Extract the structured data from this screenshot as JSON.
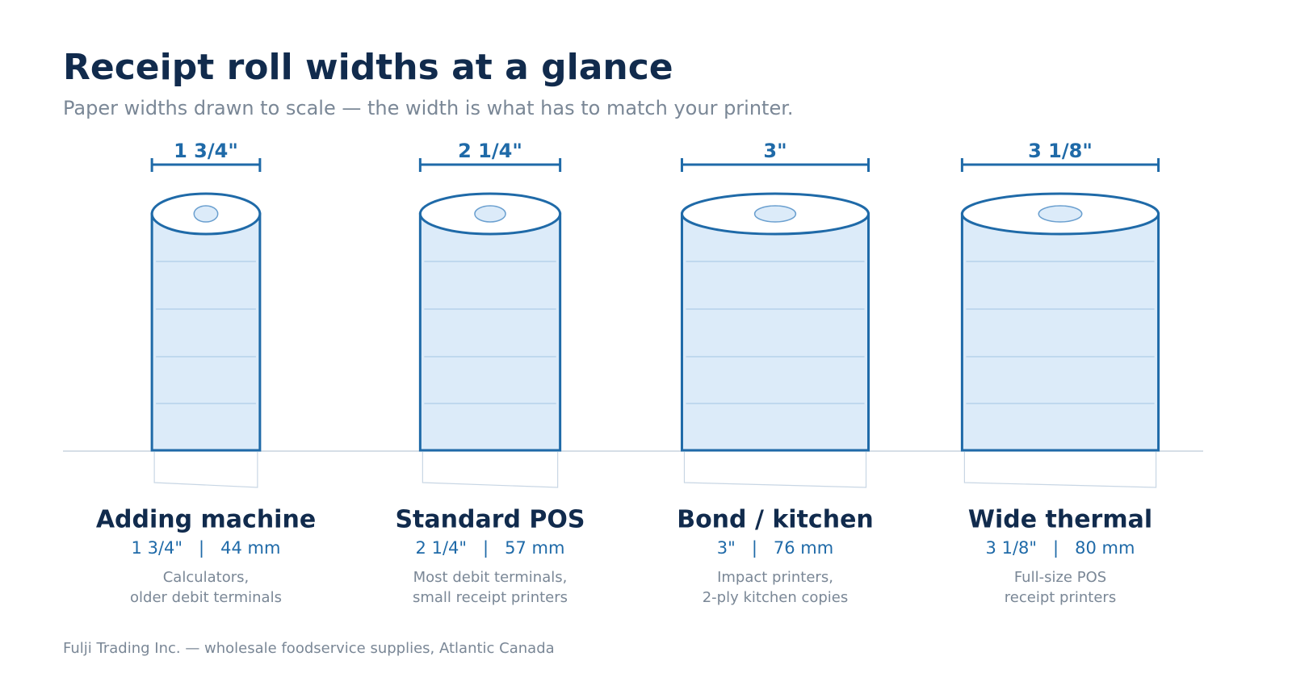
{
  "header": {
    "title": "Receipt roll widths at a glance",
    "subtitle": "Paper widths drawn to scale — the width is what has to match your printer."
  },
  "separator": "|",
  "rolls": [
    {
      "width_label": "1 3/4\"",
      "name": "Adding machine",
      "mm": 44,
      "mm_label": "44 mm",
      "description": [
        "Calculators,",
        "older debit terminals"
      ]
    },
    {
      "width_label": "2 1/4\"",
      "name": "Standard POS",
      "mm": 57,
      "mm_label": "57 mm",
      "description": [
        "Most debit terminals,",
        "small receipt printers"
      ]
    },
    {
      "width_label": "3\"",
      "name": "Bond / kitchen",
      "mm": 76,
      "mm_label": "76 mm",
      "description": [
        "Impact printers,",
        "2-ply kitchen copies"
      ]
    },
    {
      "width_label": "3 1/8\"",
      "name": "Wide thermal",
      "mm": 80,
      "mm_label": "80 mm",
      "description": [
        "Full-size POS",
        "receipt printers"
      ]
    }
  ],
  "footer": "Fulji Trading Inc. — wholesale foodservice supplies, Atlantic Canada"
}
